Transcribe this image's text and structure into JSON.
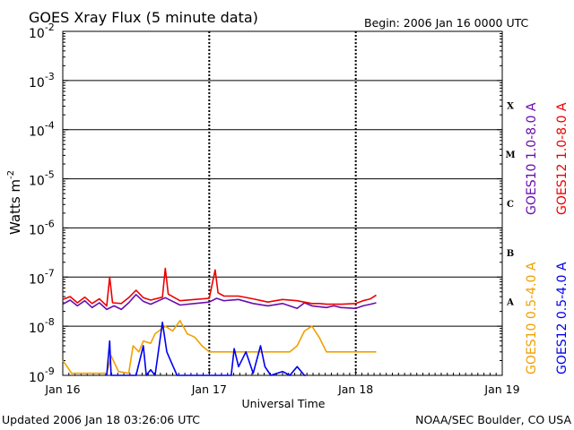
{
  "chart_data": {
    "type": "line",
    "title": "GOES Xray Flux (5 minute data)",
    "begin_label": "Begin:  2006 Jan 16 0000 UTC",
    "xlabel": "Universal Time",
    "ylabel": "Watts m",
    "ylabel_sup": "-2",
    "y_scale": "log",
    "ylim": [
      1e-09,
      0.01
    ],
    "xlim": [
      0,
      3
    ],
    "x_ticks": [
      {
        "v": 0,
        "label": "Jan 16"
      },
      {
        "v": 1,
        "label": "Jan 17"
      },
      {
        "v": 2,
        "label": "Jan 18"
      },
      {
        "v": 3,
        "label": "Jan 19"
      }
    ],
    "y_ticks": [
      {
        "exp": -9,
        "label": "10",
        "sup": "-9"
      },
      {
        "exp": -8,
        "label": "10",
        "sup": "-8"
      },
      {
        "exp": -7,
        "label": "10",
        "sup": "-7"
      },
      {
        "exp": -6,
        "label": "10",
        "sup": "-6"
      },
      {
        "exp": -5,
        "label": "10",
        "sup": "-5"
      },
      {
        "exp": -4,
        "label": "10",
        "sup": "-4"
      },
      {
        "exp": -3,
        "label": "10",
        "sup": "-3"
      },
      {
        "exp": -2,
        "label": "10",
        "sup": "-2"
      }
    ],
    "flare_classes": [
      {
        "label": "X",
        "exp": -3.5
      },
      {
        "label": "M",
        "exp": -4.5
      },
      {
        "label": "C",
        "exp": -5.5
      },
      {
        "label": "B",
        "exp": -6.5
      },
      {
        "label": "A",
        "exp": -7.5
      }
    ],
    "grid": "horizontal lines at each decade from 1e-8 to 1e-3; dashed vertical lines at each day",
    "series": [
      {
        "name": "GOES10 1.0-8.0 A",
        "color": "#6a0dad",
        "points": [
          [
            0.0,
            2.8e-08
          ],
          [
            0.05,
            3.4e-08
          ],
          [
            0.1,
            2.6e-08
          ],
          [
            0.15,
            3.3e-08
          ],
          [
            0.2,
            2.4e-08
          ],
          [
            0.25,
            3e-08
          ],
          [
            0.3,
            2.2e-08
          ],
          [
            0.35,
            2.6e-08
          ],
          [
            0.4,
            2.2e-08
          ],
          [
            0.45,
            3e-08
          ],
          [
            0.5,
            4.4e-08
          ],
          [
            0.55,
            3.2e-08
          ],
          [
            0.6,
            2.8e-08
          ],
          [
            0.7,
            3.8e-08
          ],
          [
            0.8,
            2.7e-08
          ],
          [
            0.9,
            2.9e-08
          ],
          [
            1.0,
            3.1e-08
          ],
          [
            1.05,
            3.7e-08
          ],
          [
            1.1,
            3.3e-08
          ],
          [
            1.2,
            3.5e-08
          ],
          [
            1.3,
            2.9e-08
          ],
          [
            1.4,
            2.6e-08
          ],
          [
            1.5,
            2.9e-08
          ],
          [
            1.6,
            2.3e-08
          ],
          [
            1.65,
            3e-08
          ],
          [
            1.7,
            2.6e-08
          ],
          [
            1.8,
            2.4e-08
          ],
          [
            1.85,
            2.6e-08
          ],
          [
            1.9,
            2.4e-08
          ],
          [
            2.0,
            2.3e-08
          ],
          [
            2.05,
            2.6e-08
          ],
          [
            2.1,
            2.8e-08
          ],
          [
            2.14,
            3e-08
          ]
        ]
      },
      {
        "name": "GOES12 1.0-8.0 A",
        "color": "#ee0000",
        "points": [
          [
            0.0,
            3.5e-08
          ],
          [
            0.05,
            4e-08
          ],
          [
            0.1,
            3e-08
          ],
          [
            0.15,
            3.9e-08
          ],
          [
            0.2,
            2.9e-08
          ],
          [
            0.25,
            3.6e-08
          ],
          [
            0.3,
            2.6e-08
          ],
          [
            0.32,
            1e-07
          ],
          [
            0.34,
            3e-08
          ],
          [
            0.4,
            2.9e-08
          ],
          [
            0.45,
            3.8e-08
          ],
          [
            0.5,
            5.4e-08
          ],
          [
            0.55,
            3.8e-08
          ],
          [
            0.6,
            3.4e-08
          ],
          [
            0.68,
            3.9e-08
          ],
          [
            0.7,
            1.5e-07
          ],
          [
            0.72,
            4.5e-08
          ],
          [
            0.8,
            3.3e-08
          ],
          [
            0.9,
            3.5e-08
          ],
          [
            1.0,
            3.7e-08
          ],
          [
            1.04,
            1.4e-07
          ],
          [
            1.06,
            4.8e-08
          ],
          [
            1.1,
            4.1e-08
          ],
          [
            1.2,
            4.1e-08
          ],
          [
            1.3,
            3.6e-08
          ],
          [
            1.4,
            3.1e-08
          ],
          [
            1.5,
            3.5e-08
          ],
          [
            1.6,
            3.3e-08
          ],
          [
            1.7,
            2.9e-08
          ],
          [
            1.75,
            2.9e-08
          ],
          [
            1.8,
            2.8e-08
          ],
          [
            1.9,
            2.8e-08
          ],
          [
            2.0,
            2.9e-08
          ],
          [
            2.05,
            3.3e-08
          ],
          [
            2.1,
            3.6e-08
          ],
          [
            2.14,
            4.3e-08
          ]
        ]
      },
      {
        "name": "GOES10 0.5-4.0 A",
        "color": "#f0a000",
        "points": [
          [
            0.0,
            2e-09
          ],
          [
            0.03,
            1.5e-09
          ],
          [
            0.06,
            1.1e-09
          ],
          [
            0.15,
            1.1e-09
          ],
          [
            0.25,
            1.1e-09
          ],
          [
            0.3,
            1.1e-09
          ],
          [
            0.33,
            2.5e-09
          ],
          [
            0.38,
            1.2e-09
          ],
          [
            0.45,
            1.1e-09
          ],
          [
            0.48,
            4e-09
          ],
          [
            0.52,
            3e-09
          ],
          [
            0.55,
            5e-09
          ],
          [
            0.6,
            4.5e-09
          ],
          [
            0.63,
            7e-09
          ],
          [
            0.7,
            1e-08
          ],
          [
            0.75,
            8e-09
          ],
          [
            0.8,
            1.3e-08
          ],
          [
            0.85,
            7e-09
          ],
          [
            0.9,
            6e-09
          ],
          [
            0.95,
            4e-09
          ],
          [
            1.0,
            3e-09
          ],
          [
            1.2,
            3e-09
          ],
          [
            1.4,
            3e-09
          ],
          [
            1.55,
            3e-09
          ],
          [
            1.6,
            4e-09
          ],
          [
            1.65,
            8e-09
          ],
          [
            1.7,
            1e-08
          ],
          [
            1.75,
            6e-09
          ],
          [
            1.8,
            3e-09
          ],
          [
            2.0,
            3e-09
          ],
          [
            2.14,
            3e-09
          ]
        ]
      },
      {
        "name": "GOES12 0.5-4.0 A",
        "color": "#0000ee",
        "points": [
          [
            0.3,
            1e-09
          ],
          [
            0.32,
            5e-09
          ],
          [
            0.33,
            1e-09
          ],
          [
            0.5,
            1e-09
          ],
          [
            0.55,
            4e-09
          ],
          [
            0.57,
            1e-09
          ],
          [
            0.6,
            1.3e-09
          ],
          [
            0.63,
            1e-09
          ],
          [
            0.68,
            1.2e-08
          ],
          [
            0.71,
            3e-09
          ],
          [
            0.75,
            1.6e-09
          ],
          [
            0.78,
            1e-09
          ],
          [
            1.15,
            1e-09
          ],
          [
            1.17,
            3.5e-09
          ],
          [
            1.2,
            1.5e-09
          ],
          [
            1.25,
            3e-09
          ],
          [
            1.3,
            1.1e-09
          ],
          [
            1.35,
            4e-09
          ],
          [
            1.38,
            1.5e-09
          ],
          [
            1.42,
            1e-09
          ],
          [
            1.5,
            1.2e-09
          ],
          [
            1.55,
            1e-09
          ],
          [
            1.6,
            1.5e-09
          ],
          [
            1.65,
            1e-09
          ],
          [
            1.66,
            1e-09
          ]
        ]
      }
    ]
  },
  "footer": {
    "updated": "Updated 2006 Jan 18 03:26:06 UTC",
    "credit": "NOAA/SEC Boulder, CO USA"
  }
}
